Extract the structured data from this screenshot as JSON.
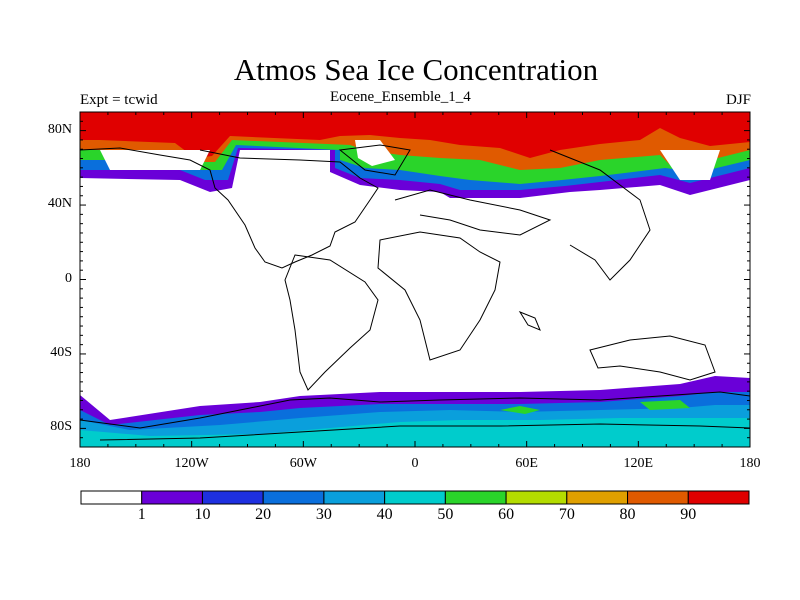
{
  "map": {
    "title": "Atmos Sea Ice Concentration",
    "left_string": "Expt = tcwid",
    "center_string": "Eocene_Ensemble_1_4",
    "right_string": "DJF",
    "projection": "cylindrical-equidistant",
    "lat_range": [
      -90,
      90
    ],
    "lon_range": [
      -180,
      180
    ],
    "lat_labels": [
      {
        "text": "80N",
        "lat": 80
      },
      {
        "text": "40N",
        "lat": 40
      },
      {
        "text": "0",
        "lat": 0
      },
      {
        "text": "40S",
        "lat": -40
      },
      {
        "text": "80S",
        "lat": -80
      }
    ],
    "lon_labels": [
      {
        "text": "180",
        "lon": -180
      },
      {
        "text": "120W",
        "lon": -120
      },
      {
        "text": "60W",
        "lon": -60
      },
      {
        "text": "0",
        "lon": 0
      },
      {
        "text": "60E",
        "lon": 60
      },
      {
        "text": "120E",
        "lon": 120
      },
      {
        "text": "180",
        "lon": 180
      }
    ]
  },
  "colorbar": {
    "colors": [
      "#ffffff",
      "#6a00d8",
      "#1e30e0",
      "#0a6fdc",
      "#0a9fdc",
      "#00cccc",
      "#2ad42a",
      "#b4dc00",
      "#e0a000",
      "#e05a00",
      "#e00000"
    ],
    "labels": [
      "1",
      "10",
      "20",
      "30",
      "40",
      "50",
      "60",
      "70",
      "80",
      "90"
    ]
  }
}
